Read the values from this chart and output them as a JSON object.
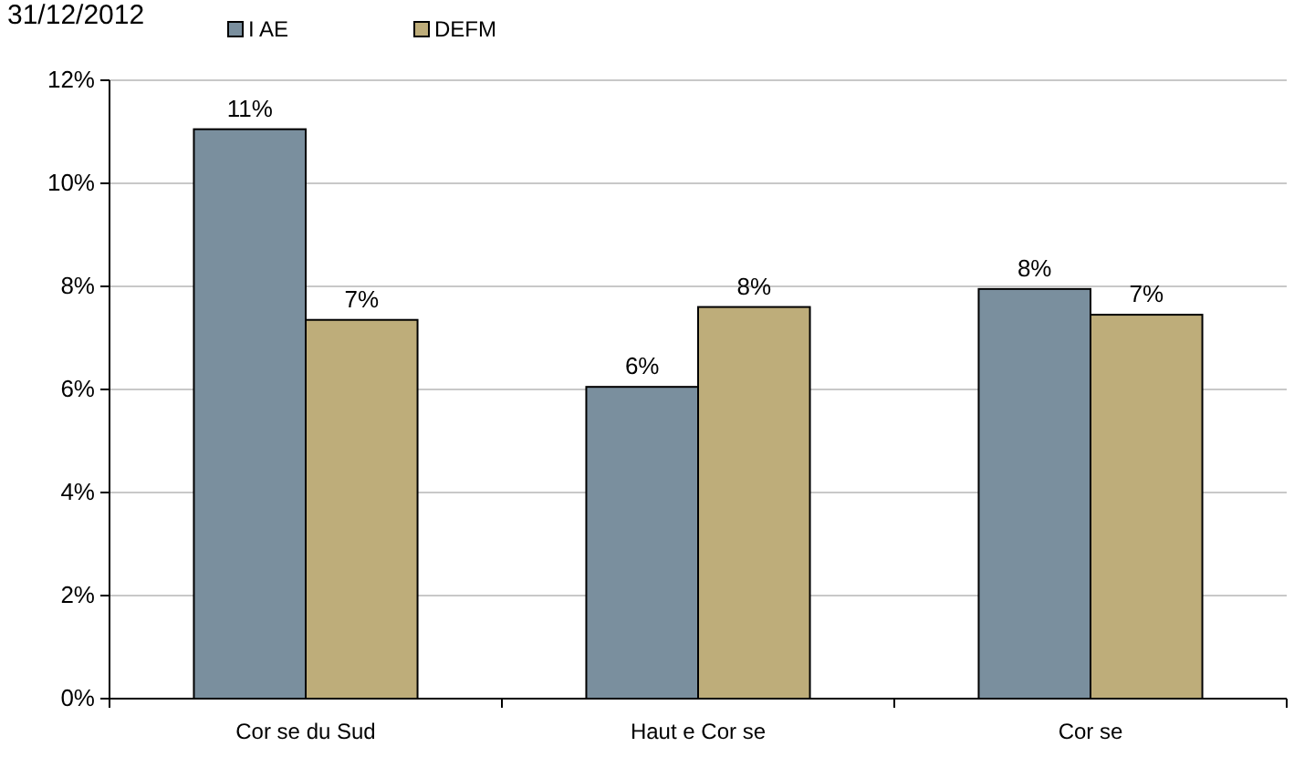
{
  "chart_data": {
    "type": "bar",
    "title": "31/12/2012",
    "categories": [
      "Cor se du Sud",
      "Haut e Cor se",
      "Cor se"
    ],
    "series": [
      {
        "name": "I AE",
        "color": "#7a8f9e",
        "values": [
          11.05,
          6.05,
          7.95
        ],
        "value_labels": [
          "11%",
          "6%",
          "8%"
        ]
      },
      {
        "name": "DEFM",
        "color": "#bead7a",
        "values": [
          7.35,
          7.6,
          7.45
        ],
        "value_labels": [
          "7%",
          "8%",
          "7%"
        ]
      }
    ],
    "ylim": [
      0,
      12
    ],
    "yticks": [
      {
        "value": 0,
        "label": "0%"
      },
      {
        "value": 2,
        "label": "2%"
      },
      {
        "value": 4,
        "label": "4%"
      },
      {
        "value": 6,
        "label": "6%"
      },
      {
        "value": 8,
        "label": "8%"
      },
      {
        "value": 10,
        "label": "10%"
      },
      {
        "value": 12,
        "label": "12%"
      }
    ],
    "grid": "y",
    "legend": "top"
  }
}
